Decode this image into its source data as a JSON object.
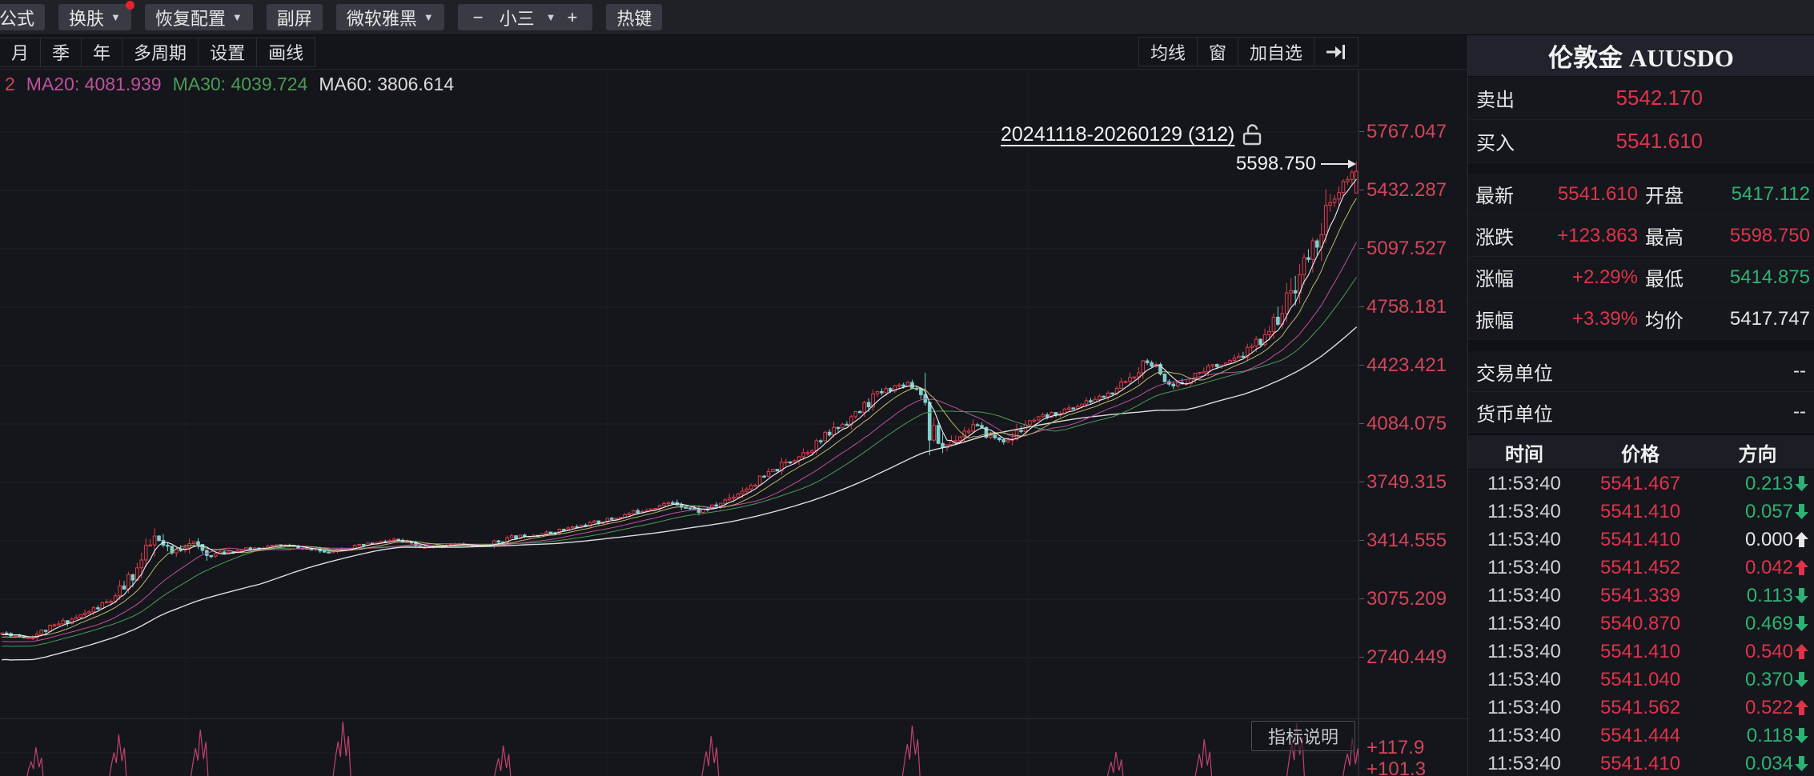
{
  "toolbar_top": {
    "buttons": [
      {
        "label": "公式",
        "cut": true
      },
      {
        "label": "换肤",
        "caret": true,
        "badge": true
      },
      {
        "label": "恢复配置",
        "caret": true
      },
      {
        "label": "副屏"
      },
      {
        "label": "微软雅黑",
        "caret": true
      },
      {
        "font_group": {
          "minus": "−",
          "size": "小三",
          "plus": "+"
        }
      },
      {
        "label": "热键"
      }
    ]
  },
  "period_bar": {
    "tabs": [
      "月",
      "季",
      "年",
      "多周期",
      "设置",
      "画线"
    ],
    "right_tabs": [
      "均线",
      "窗",
      "加自选"
    ]
  },
  "ma_readout": {
    "prefix": "2",
    "prefix_color": "#d8405c",
    "items": [
      {
        "label": "MA20:",
        "value": "4081.939",
        "color": "#c0509e"
      },
      {
        "label": "MA30:",
        "value": "4039.724",
        "color": "#4d9b55"
      },
      {
        "label": "MA60:",
        "value": "3806.614",
        "color": "#dcdcdc"
      }
    ]
  },
  "chart_overlay": {
    "range_label": "20241118-20260129 (312)",
    "last_price": "5598.750",
    "indicator_button": "指标说明"
  },
  "chart_data": {
    "type": "candlestick",
    "symbol": "伦敦金 AUUSDO",
    "date_range": "20241118-20260129",
    "candle_count": 312,
    "y_ticks": [
      "5767.047",
      "5432.287",
      "5097.527",
      "4758.181",
      "4423.421",
      "4084.075",
      "3749.315",
      "3414.555",
      "3075.209",
      "2740.449"
    ],
    "y_tick_values": [
      5767.047,
      5432.287,
      5097.527,
      4758.181,
      4423.421,
      4084.075,
      3749.315,
      3414.555,
      3075.209,
      2740.449
    ],
    "sub_ticks": [
      "+117.9",
      "+101.3"
    ],
    "last_bar": {
      "open": 5417.112,
      "high": 5598.75,
      "low": 5414.875,
      "close": 5541.61
    },
    "ma_values": {
      "ma20": 4081.939,
      "ma30": 4039.724,
      "ma60": 3806.614
    },
    "trend_anchors": [
      [
        0,
        2895
      ],
      [
        6,
        2870
      ],
      [
        13,
        2945
      ],
      [
        19,
        3005
      ],
      [
        26,
        3095
      ],
      [
        31,
        3265
      ],
      [
        35,
        3435
      ],
      [
        39,
        3345
      ],
      [
        43,
        3425
      ],
      [
        47,
        3340
      ],
      [
        55,
        3372
      ],
      [
        64,
        3400
      ],
      [
        74,
        3362
      ],
      [
        83,
        3398
      ],
      [
        90,
        3428
      ],
      [
        97,
        3382
      ],
      [
        103,
        3406
      ],
      [
        110,
        3392
      ],
      [
        118,
        3448
      ],
      [
        125,
        3468
      ],
      [
        132,
        3505
      ],
      [
        140,
        3550
      ],
      [
        147,
        3600
      ],
      [
        154,
        3645
      ],
      [
        160,
        3595
      ],
      [
        164,
        3625
      ],
      [
        169,
        3700
      ],
      [
        175,
        3790
      ],
      [
        180,
        3870
      ],
      [
        186,
        3960
      ],
      [
        191,
        4060
      ],
      [
        197,
        4165
      ],
      [
        200,
        4250
      ],
      [
        204,
        4300
      ],
      [
        208,
        4330
      ],
      [
        211,
        4280
      ],
      [
        213,
        4080
      ],
      [
        216,
        3960
      ],
      [
        219,
        4015
      ],
      [
        223,
        4085
      ],
      [
        227,
        4020
      ],
      [
        231,
        3992
      ],
      [
        235,
        4090
      ],
      [
        239,
        4130
      ],
      [
        245,
        4180
      ],
      [
        250,
        4225
      ],
      [
        256,
        4285
      ],
      [
        260,
        4385
      ],
      [
        263,
        4480
      ],
      [
        266,
        4330
      ],
      [
        269,
        4302
      ],
      [
        273,
        4362
      ],
      [
        277,
        4422
      ],
      [
        281,
        4442
      ],
      [
        284,
        4472
      ],
      [
        288,
        4555
      ],
      [
        292,
        4672
      ],
      [
        295,
        4795
      ],
      [
        298,
        4960
      ],
      [
        301,
        5105
      ],
      [
        304,
        5300
      ],
      [
        306,
        5365
      ],
      [
        308,
        5455
      ],
      [
        311,
        5541.61
      ]
    ],
    "sub_spikes": [
      [
        0.027,
        58
      ],
      [
        0.088,
        74
      ],
      [
        0.148,
        80
      ],
      [
        0.253,
        90
      ],
      [
        0.371,
        60
      ],
      [
        0.524,
        72
      ],
      [
        0.672,
        85
      ],
      [
        0.822,
        52
      ],
      [
        0.887,
        68
      ],
      [
        0.955,
        88
      ],
      [
        0.996,
        70
      ]
    ],
    "colors": {
      "up": "#e23b4e",
      "down": "#7fd0cf",
      "ma5": "#eceff1",
      "ma10": "#b9b96a",
      "ma20": "#c0509e",
      "ma30": "#4d9b55",
      "ma60": "#dcdcdc",
      "grid": "#1e2127",
      "grid_v": "#1a1d22",
      "axis_text": "#d2455a",
      "sub_line": "#c2426e"
    }
  },
  "panel": {
    "title": "伦敦金 AUUSDO",
    "quote_top": [
      {
        "label": "卖出",
        "value": "5542.170",
        "color": "red"
      },
      {
        "label": "买入",
        "value": "5541.610",
        "color": "red"
      }
    ],
    "quote_grid": [
      [
        {
          "label": "最新",
          "value": "5541.610",
          "color": "red"
        },
        {
          "label": "开盘",
          "value": "5417.112",
          "color": "green"
        }
      ],
      [
        {
          "label": "涨跌",
          "value": "+123.863",
          "color": "red"
        },
        {
          "label": "最高",
          "value": "5598.750",
          "color": "red"
        }
      ],
      [
        {
          "label": "涨幅",
          "value": "+2.29%",
          "color": "red"
        },
        {
          "label": "最低",
          "value": "5414.875",
          "color": "green"
        }
      ],
      [
        {
          "label": "振幅",
          "value": "+3.39%",
          "color": "red"
        },
        {
          "label": "均价",
          "value": "5417.747",
          "color": "white"
        }
      ]
    ],
    "units": [
      {
        "label": "交易单位",
        "value": "--"
      },
      {
        "label": "货币单位",
        "value": "--"
      }
    ],
    "table": {
      "headers": [
        "时间",
        "价格",
        "方向"
      ],
      "rows": [
        {
          "time": "11:53:40",
          "price": "5541.467",
          "change": "0.213",
          "dir": "down"
        },
        {
          "time": "11:53:40",
          "price": "5541.410",
          "change": "0.057",
          "dir": "down"
        },
        {
          "time": "11:53:40",
          "price": "5541.410",
          "change": "0.000",
          "dir": "flat"
        },
        {
          "time": "11:53:40",
          "price": "5541.452",
          "change": "0.042",
          "dir": "up"
        },
        {
          "time": "11:53:40",
          "price": "5541.339",
          "change": "0.113",
          "dir": "down"
        },
        {
          "time": "11:53:40",
          "price": "5540.870",
          "change": "0.469",
          "dir": "down"
        },
        {
          "time": "11:53:40",
          "price": "5541.410",
          "change": "0.540",
          "dir": "up"
        },
        {
          "time": "11:53:40",
          "price": "5541.040",
          "change": "0.370",
          "dir": "down"
        },
        {
          "time": "11:53:40",
          "price": "5541.562",
          "change": "0.522",
          "dir": "up"
        },
        {
          "time": "11:53:40",
          "price": "5541.444",
          "change": "0.118",
          "dir": "down"
        },
        {
          "time": "11:53:40",
          "price": "5541.410",
          "change": "0.034",
          "dir": "down"
        }
      ]
    }
  }
}
